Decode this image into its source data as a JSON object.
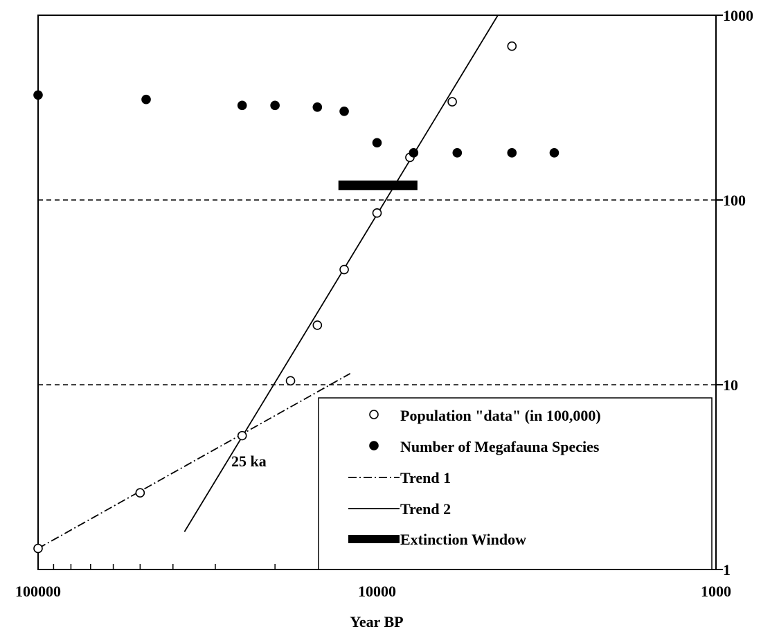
{
  "chart_data": {
    "type": "scatter",
    "xlabel": "Year BP",
    "x_scale": "log",
    "x_reversed": true,
    "xlim": [
      100000,
      1000
    ],
    "x_tick_labels": [
      "100000",
      "10000",
      "1000"
    ],
    "ylabel": "",
    "y_scale": "log",
    "ylim": [
      1,
      1000
    ],
    "y_tick_labels": [
      "1",
      "10",
      "100",
      "1000"
    ],
    "y_axis_side": "right",
    "grid": "dashed horizontal lines at 10 and 100",
    "legend_position": "bottom-right",
    "series": [
      {
        "name": "Population \"data\" (in 100,000)",
        "marker": "open-circle",
        "points": [
          {
            "x": 100000,
            "y": 1.3
          },
          {
            "x": 50000,
            "y": 2.6
          },
          {
            "x": 25000,
            "y": 5.3
          },
          {
            "x": 18000,
            "y": 10.5
          },
          {
            "x": 15000,
            "y": 21
          },
          {
            "x": 12500,
            "y": 42
          },
          {
            "x": 10000,
            "y": 85
          },
          {
            "x": 8000,
            "y": 170
          },
          {
            "x": 6000,
            "y": 340
          },
          {
            "x": 4000,
            "y": 680
          }
        ]
      },
      {
        "name": "Number of Megafauna Species",
        "marker": "filled-circle",
        "points": [
          {
            "x": 100000,
            "y": 370
          },
          {
            "x": 48000,
            "y": 350
          },
          {
            "x": 25000,
            "y": 325
          },
          {
            "x": 20000,
            "y": 325
          },
          {
            "x": 15000,
            "y": 318
          },
          {
            "x": 12500,
            "y": 302
          },
          {
            "x": 10000,
            "y": 204
          },
          {
            "x": 7800,
            "y": 180
          },
          {
            "x": 5800,
            "y": 180
          },
          {
            "x": 4000,
            "y": 180
          },
          {
            "x": 3000,
            "y": 180
          }
        ]
      },
      {
        "name": "Trend 1",
        "line": "dash-dot",
        "points": [
          {
            "x": 100000,
            "y": 1.3
          },
          {
            "x": 12000,
            "y": 11.5
          }
        ]
      },
      {
        "name": "Trend 2",
        "line": "solid",
        "points": [
          {
            "x": 37000,
            "y": 1.6
          },
          {
            "x": 4400,
            "y": 1000
          }
        ]
      },
      {
        "name": "Extinction Window",
        "bar": "thick",
        "x_range": [
          13000,
          7600
        ],
        "y": 120
      }
    ],
    "annotations": [
      {
        "text": "25 ka",
        "x": 25000,
        "y": 4
      }
    ]
  }
}
